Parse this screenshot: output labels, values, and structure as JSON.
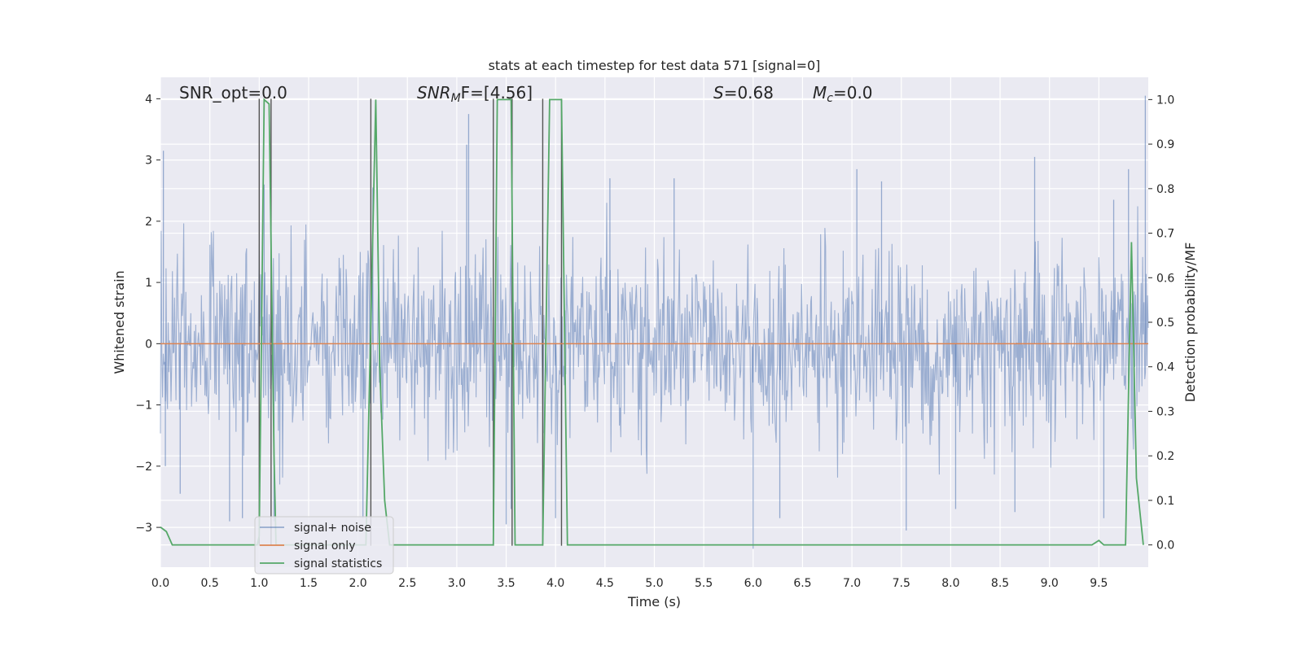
{
  "chart_data": {
    "type": "line",
    "title": "stats at each timestep for test data 571 [signal=0]",
    "xlabel": "Time (s)",
    "ylabel_left": "Whitened strain",
    "ylabel_right": "Detection probability/MF",
    "xlim": [
      0.0,
      10.0
    ],
    "ylim_left": [
      -3.65,
      4.35
    ],
    "ylim_right": [
      -0.05,
      1.05
    ],
    "x_ticks": [
      "0.0",
      "0.5",
      "1.0",
      "1.5",
      "2.0",
      "2.5",
      "3.0",
      "3.5",
      "4.0",
      "4.5",
      "5.0",
      "5.5",
      "6.0",
      "6.5",
      "7.0",
      "7.5",
      "8.0",
      "8.5",
      "9.0",
      "9.5"
    ],
    "y_ticks_left": [
      "−3",
      "−2",
      "−1",
      "0",
      "1",
      "2",
      "3",
      "4"
    ],
    "y_ticks_right": [
      "0.0",
      "0.1",
      "0.2",
      "0.3",
      "0.4",
      "0.5",
      "0.6",
      "0.7",
      "0.8",
      "0.9",
      "1.0"
    ],
    "grid": true,
    "background": "#eaeaf2",
    "annotations": {
      "snr_opt": "SNR_opt=0.0",
      "snr_mf_base": "SNR",
      "snr_mf_sub": "M",
      "snr_mf_rest": "F=[4.56]",
      "s_label": "S",
      "s_value": "=0.68",
      "mc_label": "M",
      "mc_sub": "c",
      "mc_value": "=0.0"
    },
    "series": [
      {
        "name": "signal+ noise",
        "color": "#4c72b0",
        "axis": "left",
        "style": "noise",
        "envelope": 1.1,
        "spikes": [
          [
            0.03,
            3.15
          ],
          [
            0.05,
            -2.0
          ],
          [
            0.2,
            -2.45
          ],
          [
            0.7,
            -2.9
          ],
          [
            0.83,
            -2.85
          ],
          [
            1.05,
            2.6
          ],
          [
            1.15,
            -2.9
          ],
          [
            2.05,
            -2.85
          ],
          [
            2.15,
            2.55
          ],
          [
            3.12,
            3.75
          ],
          [
            3.1,
            3.25
          ],
          [
            3.55,
            -2.7
          ],
          [
            3.5,
            -2.95
          ],
          [
            4.55,
            2.7
          ],
          [
            4.0,
            -2.85
          ],
          [
            5.2,
            2.7
          ],
          [
            6.0,
            -3.35
          ],
          [
            6.27,
            -2.85
          ],
          [
            7.05,
            2.85
          ],
          [
            7.3,
            2.65
          ],
          [
            7.55,
            -3.05
          ],
          [
            8.05,
            -2.7
          ],
          [
            8.65,
            -2.75
          ],
          [
            8.85,
            3.05
          ],
          [
            9.55,
            -2.85
          ],
          [
            9.8,
            2.85
          ],
          [
            9.97,
            4.05
          ],
          [
            9.65,
            2.35
          ]
        ]
      },
      {
        "name": "signal only",
        "color": "#dd8452",
        "axis": "left",
        "x": [
          0.0,
          10.0
        ],
        "y": [
          0.0,
          0.0
        ]
      },
      {
        "name": "signal statistics",
        "color": "#55a868",
        "axis": "right",
        "x": [
          0.0,
          0.06,
          0.12,
          0.98,
          1.0,
          1.05,
          1.1,
          1.15,
          1.17,
          2.08,
          2.13,
          2.18,
          2.22,
          2.27,
          2.32,
          3.37,
          3.41,
          3.55,
          3.59,
          3.63,
          3.83,
          3.87,
          3.94,
          4.06,
          4.12,
          9.43,
          9.5,
          9.55,
          9.63,
          9.77,
          9.83,
          9.88,
          9.95
        ],
        "y": [
          0.04,
          0.03,
          0.0,
          0.0,
          0.02,
          1.0,
          0.99,
          0.2,
          0.0,
          0.0,
          0.5,
          1.0,
          0.4,
          0.1,
          0.0,
          0.0,
          1.0,
          1.0,
          0.0,
          0.0,
          0.0,
          0.0,
          1.0,
          1.0,
          0.0,
          0.0,
          0.01,
          0.0,
          0.0,
          0.0,
          0.68,
          0.15,
          0.0
        ]
      }
    ],
    "vlines": [
      {
        "x": 1.0,
        "top": 4.0,
        "bottom": -3.3
      },
      {
        "x": 1.12,
        "top": 4.0,
        "bottom": -3.3
      },
      {
        "x": 2.13,
        "top": 4.0,
        "bottom": -3.3
      },
      {
        "x": 3.37,
        "top": 4.0,
        "bottom": -3.3
      },
      {
        "x": 3.56,
        "top": 4.0,
        "bottom": -3.3
      },
      {
        "x": 3.87,
        "top": 4.0,
        "bottom": -3.3
      },
      {
        "x": 4.06,
        "top": 4.0,
        "bottom": -3.3
      }
    ],
    "legend": {
      "position": "lower-left",
      "entries": [
        "signal+ noise",
        "signal only",
        "signal statistics"
      ]
    }
  }
}
